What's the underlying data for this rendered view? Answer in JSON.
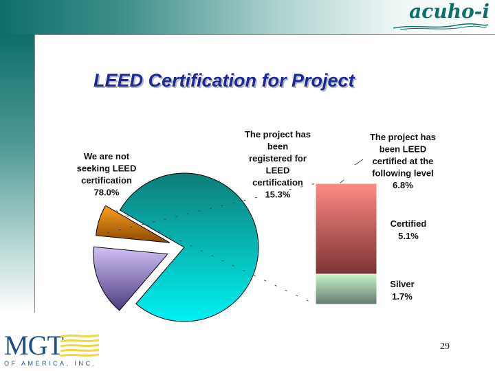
{
  "header": {
    "brand": "acuho-i"
  },
  "footer": {
    "logo_main": "MGT",
    "logo_sub": "OF AMERICA, INC.",
    "page_number": "29"
  },
  "chart_data": {
    "type": "pie",
    "title": "LEED Certification for Project",
    "slices": [
      {
        "label_lines": [
          "We are not",
          "seeking LEED",
          "certification",
          "78.0%"
        ],
        "value": 78.0,
        "color": "#00f2f2"
      },
      {
        "label_lines": [
          "The project has",
          "been",
          "registered for",
          "LEED",
          "certification",
          "15.3%"
        ],
        "value": 15.3,
        "color": "#9a86dc"
      },
      {
        "label_lines": [
          "The project has",
          "been LEED",
          "certified at the",
          "following level",
          "6.8%"
        ],
        "value": 6.8,
        "color": "#f08a00"
      }
    ],
    "breakdown": {
      "type": "stacked-bar",
      "parent": "The project has been LEED certified at the following level",
      "segments": [
        {
          "label_lines": [
            "Certified",
            "5.1%"
          ],
          "value": 5.1,
          "color": "#ff8a84"
        },
        {
          "label_lines": [
            "Silver",
            "1.7%"
          ],
          "value": 1.7,
          "color": "#c6f4c8"
        }
      ]
    }
  }
}
